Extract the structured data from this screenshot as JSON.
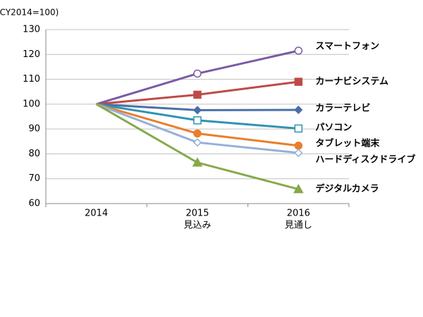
{
  "chart_data": {
    "type": "line",
    "y_label": "(CY2014=100)",
    "categories": [
      "2014",
      "2015",
      "2016"
    ],
    "category_sublabels": [
      null,
      "見込み",
      "見通し"
    ],
    "ylim": [
      60,
      130
    ],
    "yticks": [
      60,
      70,
      80,
      90,
      100,
      110,
      120,
      130
    ],
    "grid": true,
    "series": [
      {
        "name": "スマートフォン",
        "color": "#7b5aa6",
        "marker": "circle",
        "marker_open": true,
        "values": [
          100,
          112.3,
          121.5
        ]
      },
      {
        "name": "カーナビシステム",
        "color": "#be4b48",
        "marker": "square",
        "marker_open": false,
        "values": [
          100,
          103.8,
          109
        ]
      },
      {
        "name": "カラーテレビ",
        "color": "#4a6fa9",
        "marker": "diamond",
        "marker_open": false,
        "values": [
          100,
          97.6,
          97.7
        ]
      },
      {
        "name": "パソコン",
        "color": "#2f93b4",
        "marker": "square",
        "marker_open": true,
        "values": [
          100,
          93.5,
          90.2
        ]
      },
      {
        "name": "タブレット端末",
        "color": "#e87f2c",
        "marker": "circle",
        "marker_open": false,
        "values": [
          100,
          88.2,
          83.3
        ]
      },
      {
        "name": "ハードディスクドライブ",
        "color": "#95b0d9",
        "marker": "diamond",
        "marker_open": true,
        "values": [
          100,
          84.6,
          80.4
        ]
      },
      {
        "name": "デジタルカメラ",
        "color": "#86a94a",
        "marker": "triangle",
        "marker_open": false,
        "values": [
          100,
          76.5,
          65.8
        ]
      }
    ]
  }
}
